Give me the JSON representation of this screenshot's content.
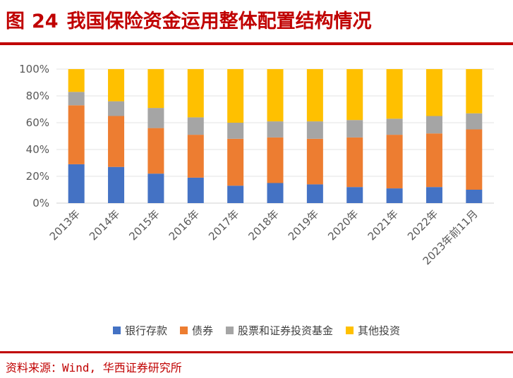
{
  "header": {
    "fig_label": "图",
    "fig_number": "24",
    "title": "我国保险资金运用整体配置结构情况"
  },
  "source": "资料来源：Wind, 华西证券研究所",
  "chart_data": {
    "type": "bar",
    "stacked": true,
    "percent": true,
    "categories": [
      "2013年",
      "2014年",
      "2015年",
      "2016年",
      "2017年",
      "2018年",
      "2019年",
      "2020年",
      "2021年",
      "2022年",
      "2023年前11月"
    ],
    "ylim": [
      0,
      100
    ],
    "yticks": [
      "0%",
      "20%",
      "40%",
      "60%",
      "80%",
      "100%"
    ],
    "grid": true,
    "legend_position": "bottom",
    "series": [
      {
        "name": "银行存款",
        "color": "#4472c4",
        "values": [
          29,
          27,
          22,
          19,
          13,
          15,
          14,
          12,
          11,
          12,
          10
        ]
      },
      {
        "name": "债券",
        "color": "#ed7d31",
        "values": [
          44,
          38,
          34,
          32,
          35,
          34,
          34,
          37,
          40,
          40,
          45
        ]
      },
      {
        "name": "股票和证券投资基金",
        "color": "#a5a5a5",
        "values": [
          10,
          11,
          15,
          13,
          12,
          12,
          13,
          13,
          12,
          13,
          12
        ]
      },
      {
        "name": "其他投资",
        "color": "#ffc000",
        "values": [
          17,
          24,
          29,
          36,
          40,
          39,
          39,
          38,
          37,
          35,
          33
        ]
      }
    ]
  }
}
